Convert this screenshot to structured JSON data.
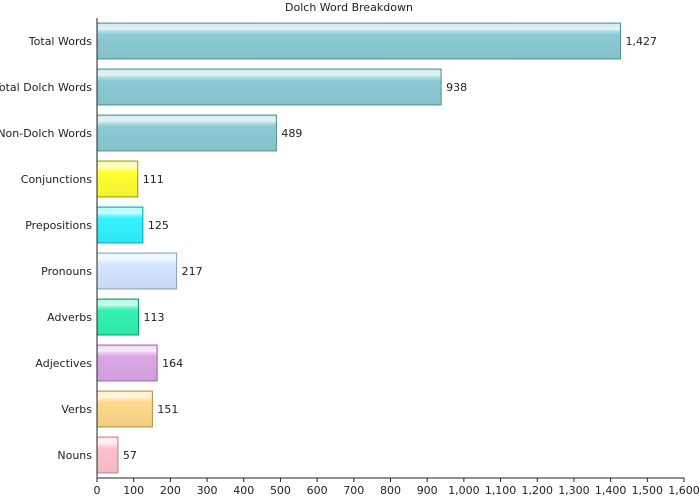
{
  "chart_data": {
    "type": "bar",
    "orientation": "horizontal",
    "title": "Dolch Word Breakdown",
    "xlabel": "",
    "ylabel": "",
    "xlim": [
      0,
      1600
    ],
    "x_ticks": [
      0,
      100,
      200,
      300,
      400,
      500,
      600,
      700,
      800,
      900,
      1000,
      1100,
      1200,
      1300,
      1400,
      1500,
      1600
    ],
    "x_tick_labels": [
      "0",
      "100",
      "200",
      "300",
      "400",
      "500",
      "600",
      "700",
      "800",
      "900",
      "1,000",
      "1,100",
      "1,200",
      "1,300",
      "1,400",
      "1,500",
      "1,600"
    ],
    "grid": false,
    "legend": "none",
    "categories": [
      "Total Words",
      "Total Dolch Words",
      "Non-Dolch Words",
      "Conjunctions",
      "Prepositions",
      "Pronouns",
      "Adverbs",
      "Adjectives",
      "Verbs",
      "Nouns"
    ],
    "values": [
      1427,
      938,
      489,
      111,
      125,
      217,
      113,
      164,
      151,
      57
    ],
    "value_labels": [
      "1,427",
      "938",
      "489",
      "111",
      "125",
      "217",
      "113",
      "164",
      "151",
      "57"
    ],
    "colors": [
      "#8ccbd4",
      "#8ccbd4",
      "#8ccbd4",
      "#ffff33",
      "#33f2ff",
      "#d4e6ff",
      "#33f2b0",
      "#dca6e6",
      "#ffd98c",
      "#ffc2cc"
    ],
    "outline_colors": [
      "#4f8f99",
      "#4f8f99",
      "#4f8f99",
      "#999900",
      "#00a6b3",
      "#8aa0bf",
      "#009966",
      "#9966a6",
      "#b38a40",
      "#c27f8a"
    ]
  }
}
